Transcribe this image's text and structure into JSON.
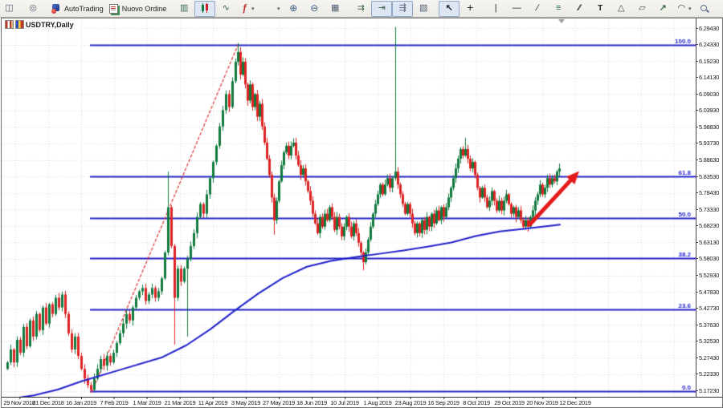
{
  "toolbar": {
    "autotrading_label": "AutoTrading",
    "new_order_label": "Nuovo Ordine",
    "groups": [
      {
        "items": [
          {
            "name": "profile-fragment",
            "icon": "profile-fragment-icon"
          },
          {
            "name": "broadcast",
            "icon": "broadcast-icon"
          }
        ]
      },
      {
        "items": [
          {
            "name": "autotrading",
            "icon": "autotrading-icon",
            "label": "AutoTrading"
          },
          {
            "name": "new-order",
            "icon": "new-order-icon",
            "label": "Nuovo Ordine"
          }
        ]
      },
      {
        "items": [
          {
            "name": "bars-chart",
            "icon": "bars-chart-icon"
          },
          {
            "name": "candlestick-chart",
            "icon": "candlestick-chart-icon",
            "active": true
          },
          {
            "name": "line-chart",
            "icon": "line-chart-icon"
          },
          {
            "name": "indicators",
            "icon": "indicators-icon",
            "dropdown": true
          }
        ]
      },
      {
        "items": [
          {
            "name": "periods",
            "icon": "clock-icon",
            "dropdown": true
          },
          {
            "name": "zoom-in",
            "icon": "zoom-in-icon"
          },
          {
            "name": "zoom-out",
            "icon": "zoom-out-icon"
          },
          {
            "name": "tile-windows",
            "icon": "tile-windows-icon"
          }
        ]
      },
      {
        "items": [
          {
            "name": "auto-scroll",
            "icon": "auto-scroll-icon"
          },
          {
            "name": "chart-shift",
            "icon": "chart-shift-icon",
            "active": true
          },
          {
            "name": "chart-shift-bar",
            "icon": "chart-shift-bar-icon",
            "active": true
          },
          {
            "name": "templates",
            "icon": "templates-icon"
          }
        ]
      },
      {
        "items": [
          {
            "name": "cursor",
            "icon": "cursor-icon",
            "active": true
          },
          {
            "name": "crosshair",
            "icon": "crosshair-icon"
          }
        ]
      },
      {
        "items": [
          {
            "name": "vertical-line",
            "icon": "vertical-line-icon"
          },
          {
            "name": "horizontal-line",
            "icon": "horizontal-line-icon"
          },
          {
            "name": "trendline",
            "icon": "trendline-icon"
          },
          {
            "name": "fibonacci",
            "icon": "fibonacci-icon"
          },
          {
            "name": "channel",
            "icon": "channel-icon"
          },
          {
            "name": "text",
            "icon": "text-icon"
          },
          {
            "name": "arrow-marker",
            "icon": "arrow-marker-icon"
          },
          {
            "name": "shapes",
            "icon": "shapes-icon"
          },
          {
            "name": "arrows",
            "icon": "arrows-icon"
          },
          {
            "name": "cycles",
            "icon": "cycles-icon",
            "dropdown": true
          }
        ]
      }
    ],
    "right_items": [
      {
        "name": "search",
        "icon": "search-icon"
      },
      {
        "name": "chat",
        "icon": "chat-icon"
      },
      {
        "name": "connection",
        "icon": "connection-indicator"
      }
    ]
  },
  "chart": {
    "title": "USDTRY,Daily"
  },
  "chart_data": {
    "type": "candlestick",
    "symbol": "USDTRY",
    "timeframe": "Daily",
    "ylim": [
      5.14,
      6.32
    ],
    "grid": {
      "x_start": 17,
      "x_step": 41,
      "x_count": 21
    },
    "y_axis_ticks": [
      "6.29430",
      "6.24330",
      "6.19230",
      "6.14130",
      "6.09030",
      "6.03930",
      "5.98830",
      "5.93730",
      "5.88630",
      "5.83530",
      "5.78430",
      "5.73330",
      "5.68230",
      "5.63130",
      "5.58030",
      "5.52930",
      "5.47830",
      "5.42730",
      "5.37630",
      "5.32530",
      "5.27430",
      "5.22330",
      "5.17230"
    ],
    "x_axis_dates": [
      "29 Nov 2018",
      "21 Dec 2018",
      "16 Jan 2019",
      "7 Feb 2019",
      "1 Mar 2019",
      "21 Mar 2019",
      "11 Apr 2019",
      "3 May 2019",
      "27 May 2019",
      "18 Jun 2019",
      "10 Jul 2019",
      "1 Aug 2019",
      "23 Aug 2019",
      "16 Sep 2019",
      "8 Oct 2019",
      "29 Oct 2019",
      "20 Nov 2019",
      "12 Dec 2019"
    ],
    "fib_levels": [
      {
        "label": "100.0",
        "price": 6.2433
      },
      {
        "label": "61.8",
        "price": 5.8344
      },
      {
        "label": "50.0",
        "price": 5.7078
      },
      {
        "label": "38.2",
        "price": 5.5815
      },
      {
        "label": "23.6",
        "price": 5.4251
      },
      {
        "label": "0.0",
        "price": 5.1723
      }
    ],
    "fib_x_start": 110,
    "trendline": {
      "from": [
        112,
        5.167
      ],
      "to": [
        295,
        6.247
      ]
    },
    "arrow": {
      "from": [
        658,
        5.688
      ],
      "to": [
        719,
        5.852
      ]
    },
    "shift_marker_x": 697,
    "close_path": [
      [
        7,
        5.26
      ],
      [
        11,
        5.3
      ],
      [
        15,
        5.26
      ],
      [
        19,
        5.33
      ],
      [
        23,
        5.29
      ],
      [
        27,
        5.37
      ],
      [
        31,
        5.31
      ],
      [
        35,
        5.39
      ],
      [
        39,
        5.34
      ],
      [
        43,
        5.41
      ],
      [
        47,
        5.36
      ],
      [
        51,
        5.43
      ],
      [
        55,
        5.38
      ],
      [
        59,
        5.44
      ],
      [
        63,
        5.41
      ],
      [
        67,
        5.46
      ],
      [
        71,
        5.43
      ],
      [
        75,
        5.47
      ],
      [
        79,
        5.41
      ],
      [
        83,
        5.35
      ],
      [
        87,
        5.3
      ],
      [
        91,
        5.34
      ],
      [
        95,
        5.28
      ],
      [
        99,
        5.24
      ],
      [
        103,
        5.21
      ],
      [
        107,
        5.19
      ],
      [
        111,
        5.175
      ],
      [
        115,
        5.21
      ],
      [
        119,
        5.24
      ],
      [
        123,
        5.27
      ],
      [
        127,
        5.25
      ],
      [
        131,
        5.28
      ],
      [
        135,
        5.26
      ],
      [
        139,
        5.29
      ],
      [
        143,
        5.32
      ],
      [
        147,
        5.35
      ],
      [
        151,
        5.38
      ],
      [
        155,
        5.41
      ],
      [
        159,
        5.39
      ],
      [
        163,
        5.43
      ],
      [
        167,
        5.46
      ],
      [
        171,
        5.48
      ],
      [
        175,
        5.49
      ],
      [
        179,
        5.45
      ],
      [
        183,
        5.47
      ],
      [
        187,
        5.49
      ],
      [
        191,
        5.46
      ],
      [
        195,
        5.48
      ],
      [
        199,
        5.52
      ],
      [
        203,
        5.6
      ],
      [
        207,
        5.74
      ],
      [
        211,
        5.62
      ],
      [
        215,
        5.46
      ],
      [
        219,
        5.55
      ],
      [
        223,
        5.51
      ],
      [
        227,
        5.55
      ],
      [
        231,
        5.58
      ],
      [
        235,
        5.62
      ],
      [
        239,
        5.66
      ],
      [
        243,
        5.71
      ],
      [
        247,
        5.75
      ],
      [
        251,
        5.72
      ],
      [
        255,
        5.78
      ],
      [
        259,
        5.83
      ],
      [
        263,
        5.88
      ],
      [
        267,
        5.93
      ],
      [
        271,
        5.99
      ],
      [
        275,
        6.04
      ],
      [
        279,
        6.09
      ],
      [
        283,
        6.05
      ],
      [
        287,
        6.13
      ],
      [
        291,
        6.19
      ],
      [
        294,
        6.22
      ],
      [
        297,
        6.15
      ],
      [
        300,
        6.19
      ],
      [
        303,
        6.12
      ],
      [
        306,
        6.07
      ],
      [
        309,
        6.12
      ],
      [
        312,
        6.05
      ],
      [
        315,
        6.09
      ],
      [
        318,
        6.02
      ],
      [
        321,
        6.06
      ],
      [
        324,
        5.99
      ],
      [
        327,
        5.94
      ],
      [
        330,
        5.89
      ],
      [
        333,
        5.84
      ],
      [
        336,
        5.77
      ],
      [
        339,
        5.7
      ],
      [
        342,
        5.76
      ],
      [
        345,
        5.82
      ],
      [
        348,
        5.87
      ],
      [
        351,
        5.91
      ],
      [
        354,
        5.93
      ],
      [
        357,
        5.9
      ],
      [
        360,
        5.93
      ],
      [
        363,
        5.94
      ],
      [
        366,
        5.9
      ],
      [
        369,
        5.87
      ],
      [
        372,
        5.84
      ],
      [
        375,
        5.86
      ],
      [
        378,
        5.82
      ],
      [
        381,
        5.79
      ],
      [
        384,
        5.76
      ],
      [
        387,
        5.72
      ],
      [
        390,
        5.69
      ],
      [
        393,
        5.66
      ],
      [
        396,
        5.71
      ],
      [
        399,
        5.68
      ],
      [
        402,
        5.72
      ],
      [
        405,
        5.7
      ],
      [
        408,
        5.74
      ],
      [
        411,
        5.71
      ],
      [
        414,
        5.67
      ],
      [
        417,
        5.71
      ],
      [
        420,
        5.68
      ],
      [
        423,
        5.65
      ],
      [
        426,
        5.68
      ],
      [
        429,
        5.71
      ],
      [
        432,
        5.68
      ],
      [
        435,
        5.65
      ],
      [
        438,
        5.69
      ],
      [
        441,
        5.66
      ],
      [
        444,
        5.63
      ],
      [
        447,
        5.6
      ],
      [
        450,
        5.57
      ],
      [
        453,
        5.6
      ],
      [
        456,
        5.64
      ],
      [
        459,
        5.68
      ],
      [
        462,
        5.72
      ],
      [
        465,
        5.75
      ],
      [
        468,
        5.78
      ],
      [
        471,
        5.81
      ],
      [
        474,
        5.78
      ],
      [
        477,
        5.81
      ],
      [
        480,
        5.83
      ],
      [
        483,
        5.8
      ],
      [
        486,
        5.83
      ],
      [
        490,
        5.85
      ],
      [
        493,
        5.81
      ],
      [
        496,
        5.78
      ],
      [
        499,
        5.75
      ],
      [
        502,
        5.72
      ],
      [
        505,
        5.75
      ],
      [
        508,
        5.72
      ],
      [
        511,
        5.69
      ],
      [
        514,
        5.66
      ],
      [
        517,
        5.69
      ],
      [
        520,
        5.66
      ],
      [
        523,
        5.7
      ],
      [
        526,
        5.67
      ],
      [
        529,
        5.71
      ],
      [
        532,
        5.68
      ],
      [
        535,
        5.72
      ],
      [
        538,
        5.69
      ],
      [
        541,
        5.73
      ],
      [
        544,
        5.7
      ],
      [
        547,
        5.74
      ],
      [
        550,
        5.71
      ],
      [
        553,
        5.74
      ],
      [
        556,
        5.77
      ],
      [
        559,
        5.8
      ],
      [
        562,
        5.83
      ],
      [
        565,
        5.86
      ],
      [
        568,
        5.89
      ],
      [
        571,
        5.92
      ],
      [
        574,
        5.9
      ],
      [
        577,
        5.92
      ],
      [
        580,
        5.89
      ],
      [
        583,
        5.86
      ],
      [
        586,
        5.88
      ],
      [
        589,
        5.84
      ],
      [
        592,
        5.8
      ],
      [
        595,
        5.77
      ],
      [
        598,
        5.8
      ],
      [
        601,
        5.77
      ],
      [
        604,
        5.74
      ],
      [
        607,
        5.76
      ],
      [
        610,
        5.79
      ],
      [
        613,
        5.76
      ],
      [
        616,
        5.73
      ],
      [
        619,
        5.76
      ],
      [
        622,
        5.73
      ],
      [
        625,
        5.76
      ],
      [
        628,
        5.78
      ],
      [
        631,
        5.75
      ],
      [
        634,
        5.72
      ],
      [
        637,
        5.74
      ],
      [
        640,
        5.71
      ],
      [
        643,
        5.73
      ],
      [
        646,
        5.7
      ],
      [
        649,
        5.68
      ],
      [
        652,
        5.7
      ],
      [
        655,
        5.68
      ],
      [
        658,
        5.71
      ],
      [
        661,
        5.73
      ],
      [
        664,
        5.76
      ],
      [
        667,
        5.78
      ],
      [
        670,
        5.81
      ],
      [
        673,
        5.78
      ],
      [
        676,
        5.8
      ],
      [
        679,
        5.83
      ],
      [
        682,
        5.81
      ],
      [
        685,
        5.83
      ],
      [
        688,
        5.82
      ],
      [
        691,
        5.85
      ],
      [
        694,
        5.86
      ]
    ],
    "special_wicks": [
      {
        "x": 111,
        "low": 5.168
      },
      {
        "x": 207,
        "high": 5.85
      },
      {
        "x": 215,
        "low": 5.315
      },
      {
        "x": 231,
        "low": 5.34
      },
      {
        "x": 294,
        "high": 6.248
      },
      {
        "x": 339,
        "low": 5.655
      },
      {
        "x": 450,
        "low": 5.545
      },
      {
        "x": 490,
        "high": 6.298
      },
      {
        "x": 577,
        "high": 5.955
      },
      {
        "x": 694,
        "high": 5.875
      }
    ],
    "ma_path": [
      [
        7,
        5.146
      ],
      [
        40,
        5.158
      ],
      [
        70,
        5.176
      ],
      [
        100,
        5.202
      ],
      [
        150,
        5.239
      ],
      [
        200,
        5.276
      ],
      [
        230,
        5.313
      ],
      [
        260,
        5.363
      ],
      [
        290,
        5.42
      ],
      [
        320,
        5.474
      ],
      [
        350,
        5.521
      ],
      [
        380,
        5.556
      ],
      [
        410,
        5.574
      ],
      [
        440,
        5.586
      ],
      [
        470,
        5.596
      ],
      [
        500,
        5.606
      ],
      [
        530,
        5.618
      ],
      [
        560,
        5.631
      ],
      [
        590,
        5.651
      ],
      [
        620,
        5.665
      ],
      [
        650,
        5.673
      ],
      [
        695,
        5.686
      ]
    ],
    "colors": {
      "up": "#117a3d",
      "down": "#dd2323",
      "ma": "#2121cc",
      "fib": "#2323cc",
      "trend": "#e03030",
      "arrow": "#e31b1b",
      "grid": "#d9d9d9",
      "axis_text": "#1a1a1a"
    }
  }
}
